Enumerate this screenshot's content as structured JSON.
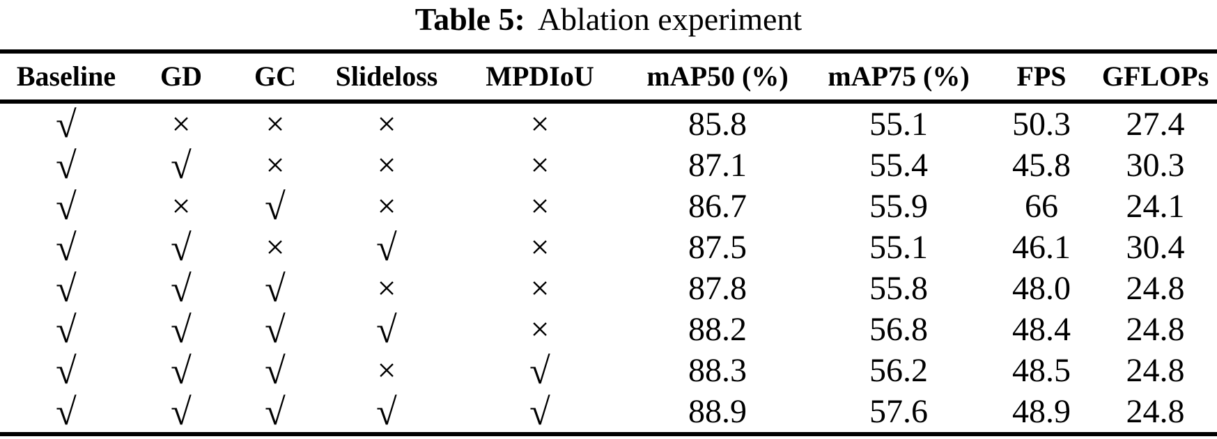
{
  "page": {
    "background": "#ffffff",
    "text_color": "#000000"
  },
  "caption": {
    "label": "Table 5:",
    "text": "Ablation experiment"
  },
  "table": {
    "columns": [
      "Baseline",
      "GD",
      "GC",
      "Slideloss",
      "MPDIoU",
      "mAP50 (%)",
      "mAP75 (%)",
      "FPS",
      "GFLOPs"
    ],
    "symbols": {
      "check": "√",
      "cross": "×"
    },
    "rows": [
      [
        "check",
        "cross",
        "cross",
        "cross",
        "cross",
        "85.8",
        "55.1",
        "50.3",
        "27.4"
      ],
      [
        "check",
        "check",
        "cross",
        "cross",
        "cross",
        "87.1",
        "55.4",
        "45.8",
        "30.3"
      ],
      [
        "check",
        "cross",
        "check",
        "cross",
        "cross",
        "86.7",
        "55.9",
        "66",
        "24.1"
      ],
      [
        "check",
        "check",
        "cross",
        "check",
        "cross",
        "87.5",
        "55.1",
        "46.1",
        "30.4"
      ],
      [
        "check",
        "check",
        "check",
        "cross",
        "cross",
        "87.8",
        "55.8",
        "48.0",
        "24.8"
      ],
      [
        "check",
        "check",
        "check",
        "check",
        "cross",
        "88.2",
        "56.8",
        "48.4",
        "24.8"
      ],
      [
        "check",
        "check",
        "check",
        "cross",
        "check",
        "88.3",
        "56.2",
        "48.5",
        "24.8"
      ],
      [
        "check",
        "check",
        "check",
        "check",
        "check",
        "88.9",
        "57.6",
        "48.9",
        "24.8"
      ]
    ]
  }
}
